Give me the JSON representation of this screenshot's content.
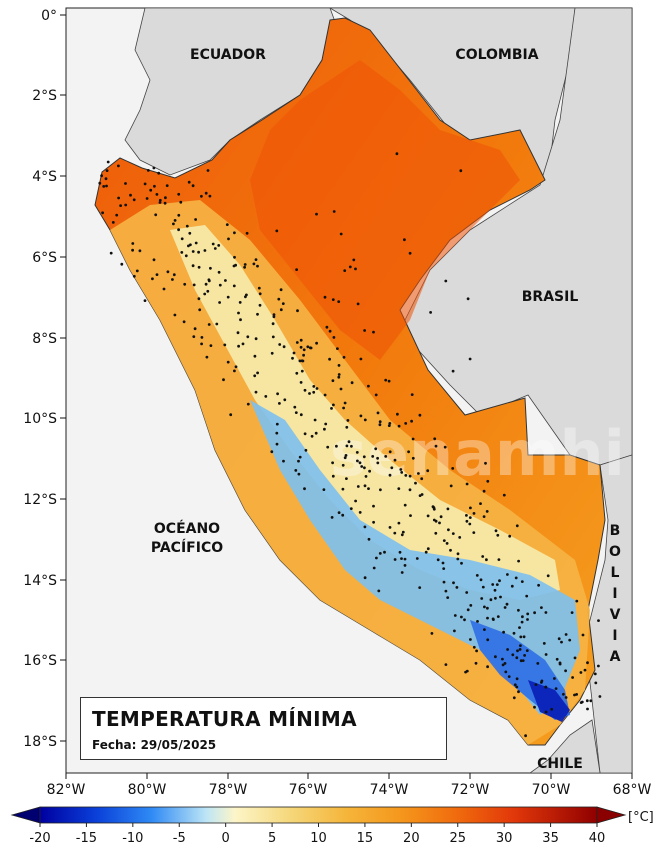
{
  "map": {
    "lat_ticks": [
      "0°",
      "2°S",
      "4°S",
      "6°S",
      "8°S",
      "10°S",
      "12°S",
      "14°S",
      "16°S",
      "18°S"
    ],
    "lon_ticks": [
      "82°W",
      "80°W",
      "78°W",
      "76°W",
      "74°W",
      "72°W",
      "70°W",
      "68°W"
    ],
    "countries": {
      "ecuador": "ECUADOR",
      "colombia": "COLOMBIA",
      "brasil": "BRASIL",
      "bolivia": "B O L I V I A",
      "chile": "CHILE"
    },
    "ocean": {
      "line1": "OCÉANO",
      "line2": "PACÍFICO"
    },
    "watermark": "senamhi"
  },
  "title_box": {
    "title": "TEMPERATURA MÍNIMA",
    "date": "Fecha: 29/05/2025"
  },
  "colorbar": {
    "unit": "[°C]",
    "ticks": [
      "-20",
      "-15",
      "-10",
      "-5",
      "0",
      "5",
      "10",
      "15",
      "20",
      "25",
      "30",
      "35",
      "40"
    ],
    "colors": [
      "#00008b",
      "#0033cc",
      "#1a66ff",
      "#4da6ff",
      "#9dd7f5",
      "#fff8c4",
      "#f7e08a",
      "#f5c04a",
      "#f5a020",
      "#f27a0c",
      "#ee4a0a",
      "#d81e08",
      "#a00000"
    ]
  }
}
